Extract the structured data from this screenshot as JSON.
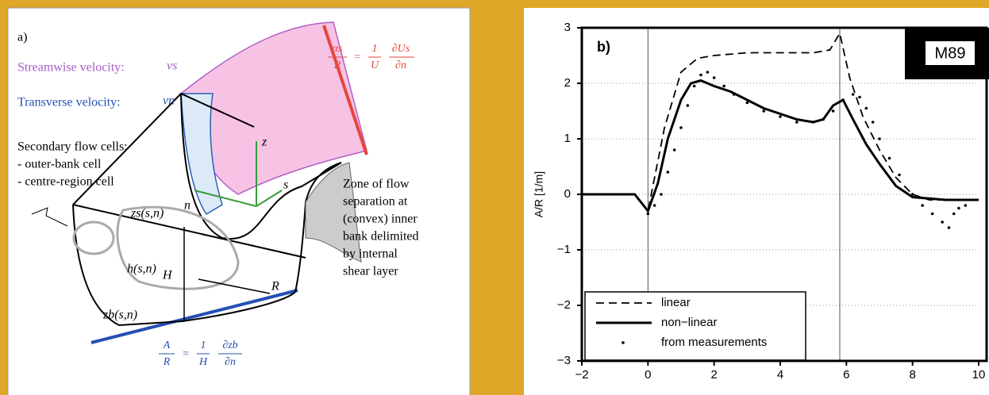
{
  "diagram": {
    "label": "a)",
    "streamwise": {
      "text": "Streamwise velocity:",
      "symbol": "vs"
    },
    "transverse": {
      "text": "Transverse velocity:",
      "symbol": "vn"
    },
    "secondary": [
      "Secondary flow cells:",
      "- outer-bank cell",
      "- centre-region cell"
    ],
    "separation": [
      "Zone of flow",
      "separation at",
      "(convex) inner",
      "bank delimited",
      "by internal",
      "shear layer"
    ],
    "labels": {
      "zs": "zs(s,n)",
      "h": "h(s,n)",
      "H": "H",
      "R": "R",
      "zb": "zb(s,n)",
      "z": "z",
      "s": "s",
      "n": "n"
    },
    "formula_top": {
      "lhs_num": "αs",
      "lhs_den": "R",
      "eq": "=",
      "c_num": "1",
      "c_den": "U",
      "d_num": "∂Us",
      "d_den": "∂n"
    },
    "formula_bottom": {
      "lhs_num": "A",
      "lhs_den": "R",
      "eq": "=",
      "c_num": "1",
      "c_den": "H",
      "d_num": "∂zb",
      "d_den": "∂n"
    }
  },
  "chart_data": {
    "type": "line",
    "panel_label": "b)",
    "badge": "M89",
    "y_label": "A/R [1/m]",
    "xlim": [
      -2,
      10
    ],
    "ylim": [
      -3,
      3
    ],
    "xticks": [
      {
        "value": -2,
        "label": "−2"
      },
      0,
      2,
      4,
      6,
      8,
      10
    ],
    "yticks": [
      {
        "value": -3,
        "label": "−3"
      },
      {
        "value": -2,
        "label": "−2"
      },
      {
        "value": -1,
        "label": "−1"
      },
      0,
      1,
      2,
      3
    ],
    "grid": true,
    "reference_lines": [
      0,
      5.8
    ],
    "legend": "lower left",
    "series": [
      {
        "name": "linear",
        "style": "dashed",
        "color": "#000000",
        "x": [
          -2,
          -0.4,
          0,
          0.5,
          1,
          1.5,
          2,
          3,
          4,
          5,
          5.5,
          5.8,
          6.1,
          6.5,
          7,
          7.5,
          8,
          8.5,
          9,
          9.6
        ],
        "values": [
          0,
          0,
          -0.3,
          1.2,
          2.2,
          2.45,
          2.5,
          2.55,
          2.55,
          2.55,
          2.6,
          2.9,
          2.1,
          1.4,
          0.8,
          0.3,
          0.0,
          -0.1,
          -0.1,
          -0.1
        ]
      },
      {
        "name": "non−linear",
        "style": "solid",
        "color": "#000000",
        "x": [
          -2,
          -0.4,
          0,
          0.3,
          0.6,
          1,
          1.3,
          1.6,
          2,
          2.5,
          3,
          3.5,
          4,
          4.5,
          5,
          5.3,
          5.6,
          5.9,
          6.2,
          6.6,
          7,
          7.5,
          8,
          9,
          10
        ],
        "values": [
          0,
          0,
          -0.3,
          0.2,
          1.0,
          1.7,
          2.0,
          2.05,
          1.95,
          1.85,
          1.7,
          1.55,
          1.45,
          1.35,
          1.3,
          1.35,
          1.6,
          1.7,
          1.35,
          0.9,
          0.55,
          0.15,
          -0.05,
          -0.1,
          -0.1
        ]
      },
      {
        "name": "from measurements",
        "style": "dots",
        "color": "#000000",
        "x": [
          0,
          0.2,
          0.4,
          0.6,
          0.8,
          1,
          1.2,
          1.4,
          1.6,
          1.8,
          2,
          2.3,
          2.6,
          3,
          3.5,
          4,
          4.5,
          5,
          5.3,
          5.6,
          5.9,
          6.2,
          6.4,
          6.6,
          6.8,
          7,
          7.3,
          7.6,
          8,
          8.3,
          8.6,
          8.9,
          9.1,
          9.25,
          9.4,
          9.6
        ],
        "values": [
          -0.35,
          -0.2,
          0.0,
          0.4,
          0.8,
          1.2,
          1.6,
          1.95,
          2.15,
          2.2,
          2.1,
          1.95,
          1.8,
          1.65,
          1.5,
          1.4,
          1.3,
          1.3,
          1.35,
          1.5,
          1.7,
          1.8,
          1.75,
          1.55,
          1.3,
          1.0,
          0.65,
          0.35,
          0.0,
          -0.2,
          -0.35,
          -0.5,
          -0.6,
          -0.35,
          -0.25,
          -0.2
        ]
      }
    ]
  }
}
